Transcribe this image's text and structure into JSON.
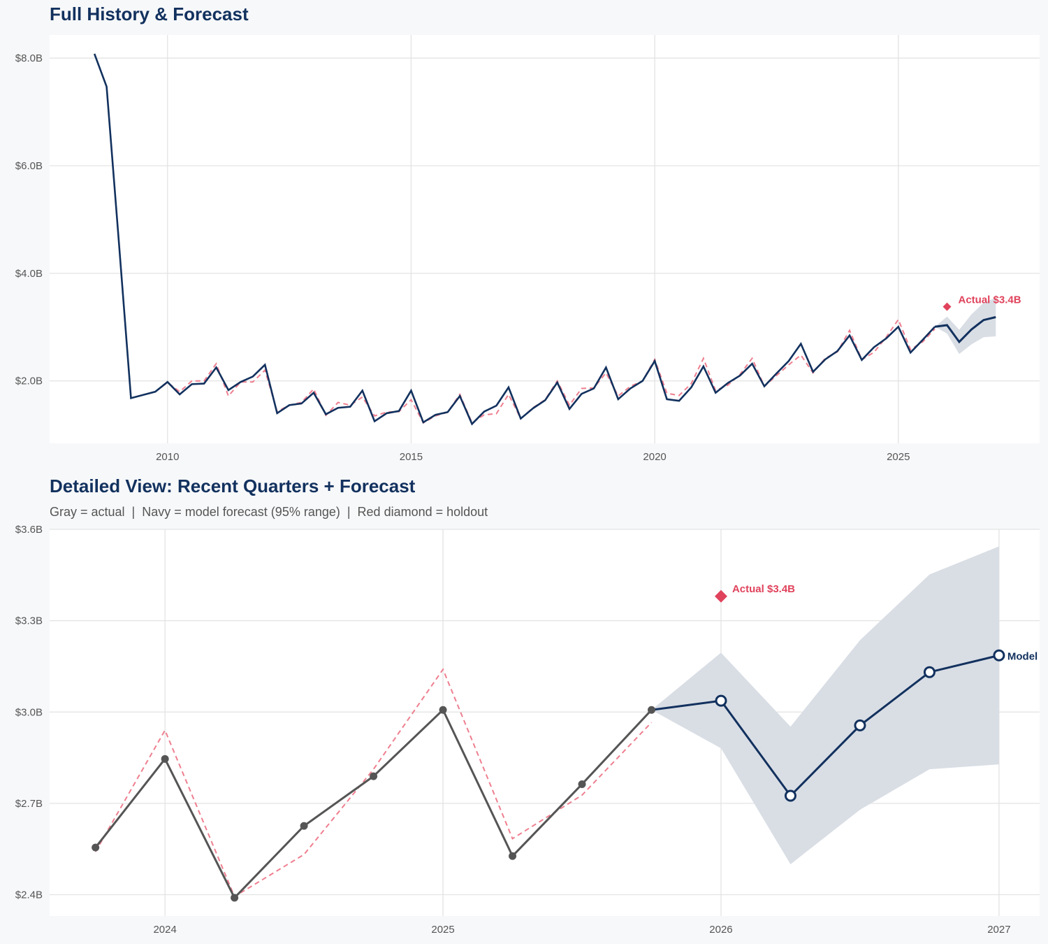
{
  "colors": {
    "navy": "#12315e",
    "gray": "#555555",
    "red": "#e0435c",
    "fitted": "#ee7f8f",
    "band": "#d9dee5",
    "grid": "#e3e3e3"
  },
  "chart_data": [
    {
      "type": "line",
      "title": "Full History & Forecast",
      "xlim": [
        2007.58,
        2027.9
      ],
      "ylim": [
        0.84,
        8.43
      ],
      "grid": true,
      "x_ticks": [
        2010,
        2015,
        2020,
        2025
      ],
      "x_tick_labels": [
        "2010",
        "2015",
        "2020",
        "2025"
      ],
      "y_ticks": [
        2,
        4,
        6,
        8
      ],
      "y_tick_labels": [
        "$2.0B",
        "$4.0B",
        "$6.0B",
        "$8.0B"
      ],
      "series": [
        {
          "role": "actual",
          "start": 2008.5,
          "step": 0.25,
          "values": [
            8.08,
            7.47,
            4.6,
            1.68,
            1.74,
            1.8,
            1.98,
            1.75,
            1.94,
            1.95,
            2.25,
            1.83,
            1.98,
            2.08,
            2.3,
            1.4,
            1.55,
            1.58,
            1.78,
            1.38,
            1.5,
            1.52,
            1.82,
            1.25,
            1.4,
            1.44,
            1.82,
            1.23,
            1.37,
            1.42,
            1.72,
            1.2,
            1.43,
            1.54,
            1.88,
            1.3,
            1.49,
            1.64,
            1.97,
            1.48,
            1.76,
            1.86,
            2.25,
            1.66,
            1.86,
            2.0,
            2.37,
            1.66,
            1.63,
            1.88,
            2.27,
            1.78,
            1.96,
            2.1,
            2.32,
            1.9,
            2.14,
            2.37,
            2.69,
            2.17,
            2.4,
            2.555,
            2.846,
            2.39,
            2.626,
            2.789,
            3.007,
            2.527,
            2.763,
            3.007
          ]
        },
        {
          "role": "fitted",
          "start": 2009.75,
          "step": 0.25,
          "values": [
            1.8,
            1.97,
            1.8,
            2.0,
            2.0,
            2.32,
            1.72,
            1.98,
            1.98,
            2.2,
            1.43,
            1.55,
            1.6,
            1.85,
            1.36,
            1.6,
            1.55,
            1.7,
            1.35,
            1.42,
            1.43,
            1.65,
            1.22,
            1.35,
            1.42,
            1.75,
            1.22,
            1.37,
            1.39,
            1.75,
            1.3,
            1.5,
            1.65,
            2.0,
            1.55,
            1.86,
            1.87,
            2.15,
            1.72,
            1.9,
            2.0,
            2.4,
            1.77,
            1.73,
            1.95,
            2.42,
            1.82,
            1.92,
            2.12,
            2.42,
            1.9,
            2.1,
            2.3,
            2.48,
            2.15,
            2.42,
            2.541,
            2.94,
            2.394,
            2.532,
            2.812,
            3.14,
            2.584,
            2.727,
            2.966
          ]
        },
        {
          "role": "forecast",
          "start": 2025.75,
          "step": 0.25,
          "values": [
            3.007,
            3.037,
            2.725,
            2.956,
            3.131,
            3.186
          ],
          "lower": [
            3.007,
            2.881,
            2.5,
            2.679,
            2.812,
            2.828
          ],
          "upper": [
            3.007,
            3.195,
            2.952,
            3.236,
            3.452,
            3.544
          ]
        }
      ],
      "holdout": {
        "x": 2026.0,
        "y": 3.38,
        "label": "Actual $3.4B"
      }
    },
    {
      "type": "line",
      "title": "Detailed View: Recent Quarters + Forecast",
      "subtitle": "Gray = actual  |  Navy = model forecast (95% range)  |  Red diamond = holdout",
      "xlim": [
        2023.585,
        2027.146
      ],
      "ylim": [
        2.33,
        3.6
      ],
      "grid": true,
      "x_ticks": [
        2024,
        2025,
        2026,
        2027
      ],
      "x_tick_labels": [
        "2024",
        "2025",
        "2026",
        "2027"
      ],
      "y_ticks": [
        2.4,
        2.7,
        3.0,
        3.3,
        3.6
      ],
      "y_tick_labels": [
        "$2.4B",
        "$2.7B",
        "$3.0B",
        "$3.3B",
        "$3.6B"
      ],
      "series": [
        {
          "role": "actual",
          "start": 2023.75,
          "step": 0.25,
          "values": [
            2.555,
            2.846,
            2.39,
            2.626,
            2.789,
            3.007,
            2.527,
            2.763,
            3.007
          ]
        },
        {
          "role": "fitted",
          "start": 2023.75,
          "step": 0.25,
          "values": [
            2.541,
            2.94,
            2.394,
            2.532,
            2.812,
            3.14,
            2.584,
            2.727,
            2.966
          ]
        },
        {
          "role": "forecast",
          "name": "Model",
          "start": 2025.75,
          "step": 0.25,
          "values": [
            3.007,
            3.037,
            2.725,
            2.956,
            3.131,
            3.186
          ],
          "lower": [
            3.007,
            2.881,
            2.5,
            2.679,
            2.812,
            2.828
          ],
          "upper": [
            3.007,
            3.195,
            2.952,
            3.236,
            3.452,
            3.544
          ]
        }
      ],
      "holdout": {
        "x": 2026.0,
        "y": 3.38,
        "label": "Actual $3.4B"
      }
    }
  ]
}
